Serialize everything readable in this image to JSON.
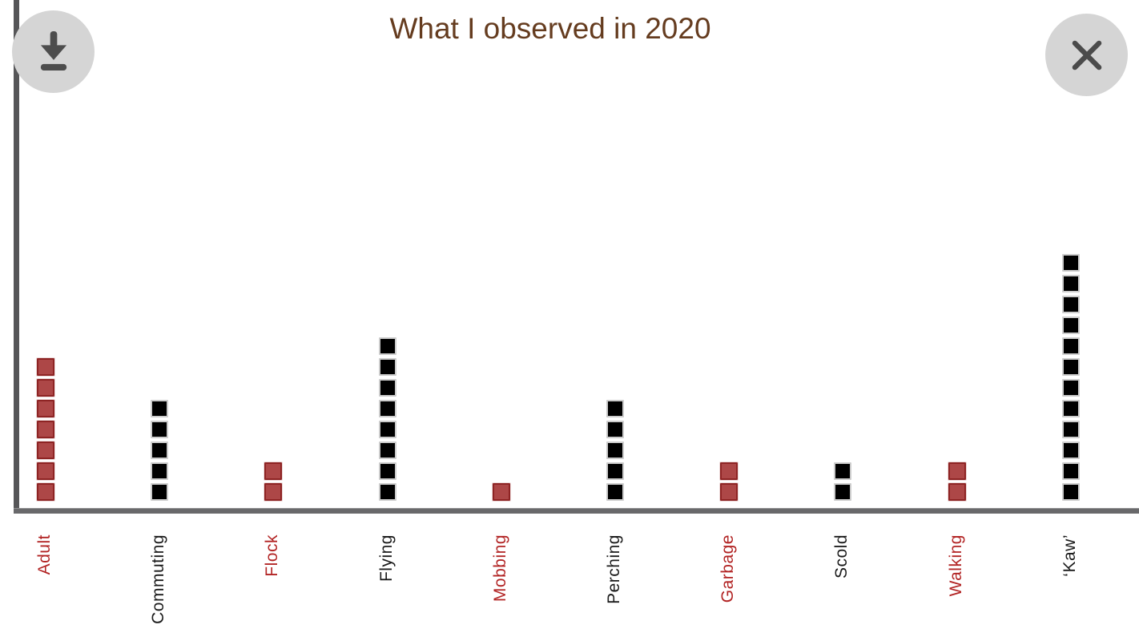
{
  "modal": {
    "icons": {
      "download": "download-arrow-to-bar",
      "close": "x-mark"
    },
    "button_colors": {
      "circle_bg": "#d5d5d5",
      "glyph": "#4d4d4d"
    }
  },
  "chart_data": {
    "type": "bar",
    "style": "pictograph-waffle (1 square = 1 observation, stacked vertically)",
    "title": "What I observed in 2020",
    "xlabel": "",
    "ylabel": "",
    "ylim": [
      0,
      12
    ],
    "grid": false,
    "legend": false,
    "categories": [
      "Adult",
      "Commuting",
      "Flock",
      "Flying",
      "Mobbing",
      "Perching",
      "Garbage",
      "Scold",
      "Walking",
      "‘Kaw’"
    ],
    "values": [
      7,
      5,
      2,
      8,
      1,
      5,
      2,
      2,
      2,
      12
    ],
    "category_colors": [
      "red",
      "black",
      "red",
      "black",
      "red",
      "black",
      "red",
      "black",
      "red",
      "black"
    ],
    "palette": {
      "red_fill": "#ad4747",
      "red_border": "#8e2424",
      "red_outer": "#ecd9d9",
      "red_label": "#b22424",
      "black_fill": "#000000",
      "black_border": "#cccccc",
      "black_label": "#1a1a1a",
      "axis": "#69696b",
      "title": "#653c1f"
    }
  }
}
